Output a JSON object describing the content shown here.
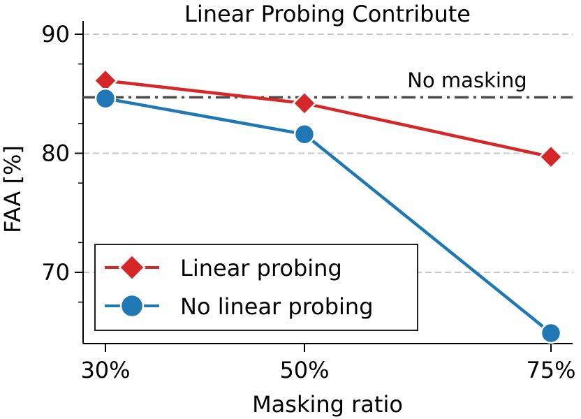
{
  "chart_data": {
    "type": "line",
    "title": "Linear Probing Contribute",
    "xlabel": "Masking ratio",
    "ylabel": "FAA [%]",
    "categories": [
      "30%",
      "50%",
      "75%"
    ],
    "ylim": [
      65,
      90
    ],
    "yticks": [
      70,
      80,
      90
    ],
    "grid": "horizontal dashed",
    "legend_position": "lower-left",
    "series": [
      {
        "name": "Linear probing",
        "values": [
          86.1,
          84.2,
          79.7
        ],
        "color": "#d62728",
        "marker": "diamond"
      },
      {
        "name": "No linear probing",
        "values": [
          84.6,
          81.6,
          64.9
        ],
        "color": "#1f77b4",
        "marker": "circle"
      }
    ],
    "reference_line": {
      "label": "No masking",
      "value": 84.7,
      "color": "#4a4a4a",
      "style": "dash-dot"
    }
  }
}
